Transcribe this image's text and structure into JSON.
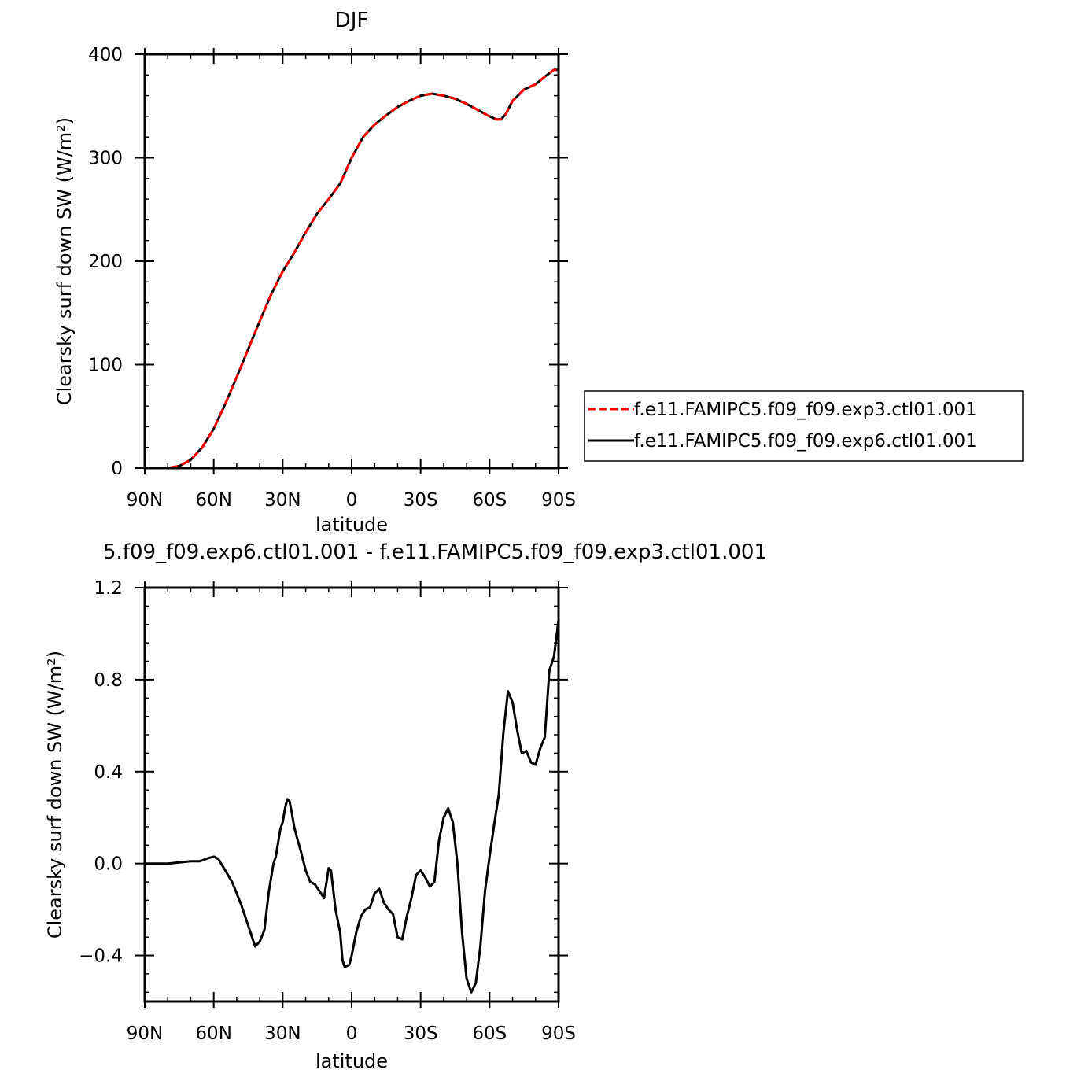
{
  "chart_data": [
    {
      "type": "line",
      "title": "DJF",
      "xlabel": "latitude",
      "ylabel": "Clearsky surf down SW (W/m²)",
      "xlim": [
        -90,
        90
      ],
      "ylim": [
        0,
        400
      ],
      "xticks": [
        -90,
        -60,
        -30,
        0,
        30,
        60,
        90
      ],
      "xtick_labels": [
        "90N",
        "60N",
        "30N",
        "0",
        "30S",
        "60S",
        "90S"
      ],
      "yticks": [
        0,
        100,
        200,
        300,
        400
      ],
      "ytick_labels": [
        "0",
        "100",
        "200",
        "300",
        "400"
      ],
      "legend_position": "right",
      "series": [
        {
          "name": "f.e11.FAMIPC5.f09_f09.exp3.ctl01.001",
          "color": "#ff0000",
          "dashed": true,
          "x": [
            -90,
            -80,
            -75,
            -70,
            -65,
            -60,
            -55,
            -50,
            -45,
            -40,
            -35,
            -30,
            -25,
            -20,
            -15,
            -10,
            -5,
            0,
            5,
            10,
            15,
            20,
            25,
            30,
            35,
            40,
            45,
            50,
            55,
            60,
            63,
            65,
            67,
            70,
            75,
            80,
            85,
            88,
            90
          ],
          "y": [
            0,
            0,
            2,
            8,
            20,
            38,
            62,
            88,
            115,
            142,
            168,
            190,
            208,
            228,
            246,
            260,
            275,
            300,
            320,
            332,
            341,
            349,
            355,
            360,
            362,
            360,
            357,
            352,
            346,
            340,
            337,
            337,
            342,
            355,
            366,
            371,
            380,
            385,
            385
          ]
        },
        {
          "name": "f.e11.FAMIPC5.f09_f09.exp6.ctl01.001",
          "color": "#000000",
          "dashed": false,
          "x": [
            -90,
            -80,
            -75,
            -70,
            -65,
            -60,
            -55,
            -50,
            -45,
            -40,
            -35,
            -30,
            -25,
            -20,
            -15,
            -10,
            -5,
            0,
            5,
            10,
            15,
            20,
            25,
            30,
            35,
            40,
            45,
            50,
            55,
            60,
            63,
            65,
            67,
            70,
            75,
            80,
            85,
            88,
            90
          ],
          "y": [
            0,
            0,
            2,
            8,
            20,
            38,
            62,
            88,
            115,
            142,
            168,
            190,
            208,
            228,
            246,
            260,
            275,
            300,
            320,
            332,
            341,
            349,
            355,
            360,
            362,
            360,
            357,
            352,
            346,
            340,
            337,
            337,
            342,
            355,
            366,
            371,
            380,
            385,
            385
          ]
        }
      ]
    },
    {
      "type": "line",
      "title": "5.f09_f09.exp6.ctl01.001 - f.e11.FAMIPC5.f09_f09.exp3.ctl01.001",
      "xlabel": "latitude",
      "ylabel": "Clearsky surf down SW (W/m²)",
      "xlim": [
        -90,
        90
      ],
      "ylim": [
        -0.6,
        1.2
      ],
      "xticks": [
        -90,
        -60,
        -30,
        0,
        30,
        60,
        90
      ],
      "xtick_labels": [
        "90N",
        "60N",
        "30N",
        "0",
        "30S",
        "60S",
        "90S"
      ],
      "yticks": [
        -0.4,
        0.0,
        0.4,
        0.8,
        1.2
      ],
      "ytick_labels": [
        "−0.4",
        "0.0",
        "0.4",
        "0.8",
        "1.2"
      ],
      "series": [
        {
          "color": "#000000",
          "x": [
            -90,
            -80,
            -75,
            -70,
            -66,
            -62,
            -60,
            -58,
            -55,
            -52,
            -50,
            -48,
            -46,
            -44,
            -42,
            -40,
            -38,
            -36,
            -34,
            -33,
            -31,
            -30,
            -29,
            -28,
            -27,
            -26,
            -25,
            -24,
            -22,
            -20,
            -18,
            -16,
            -14,
            -12,
            -10,
            -9,
            -7,
            -5,
            -4,
            -3,
            -1,
            0,
            2,
            4,
            6,
            8,
            10,
            12,
            14,
            16,
            18,
            20,
            22,
            24,
            26,
            28,
            30,
            32,
            34,
            36,
            38,
            40,
            42,
            44,
            46,
            48,
            50,
            52,
            54,
            56,
            58,
            60,
            62,
            64,
            66,
            68,
            70,
            72,
            74,
            76,
            78,
            80,
            82,
            84,
            86,
            88,
            90
          ],
          "y": [
            0,
            0,
            0.005,
            0.01,
            0.01,
            0.025,
            0.03,
            0.02,
            -0.03,
            -0.08,
            -0.13,
            -0.18,
            -0.24,
            -0.3,
            -0.36,
            -0.34,
            -0.29,
            -0.12,
            0.0,
            0.03,
            0.15,
            0.18,
            0.24,
            0.28,
            0.27,
            0.22,
            0.16,
            0.12,
            0.05,
            -0.03,
            -0.08,
            -0.09,
            -0.12,
            -0.15,
            -0.02,
            -0.03,
            -0.2,
            -0.3,
            -0.42,
            -0.45,
            -0.44,
            -0.4,
            -0.3,
            -0.23,
            -0.2,
            -0.19,
            -0.13,
            -0.11,
            -0.17,
            -0.2,
            -0.22,
            -0.32,
            -0.33,
            -0.23,
            -0.15,
            -0.05,
            -0.03,
            -0.06,
            -0.1,
            -0.08,
            0.1,
            0.2,
            0.24,
            0.18,
            0.0,
            -0.3,
            -0.5,
            -0.56,
            -0.52,
            -0.36,
            -0.12,
            0.03,
            0.17,
            0.3,
            0.57,
            0.75,
            0.7,
            0.58,
            0.48,
            0.49,
            0.44,
            0.43,
            0.5,
            0.55,
            0.84,
            0.9,
            1.06
          ]
        }
      ]
    }
  ]
}
